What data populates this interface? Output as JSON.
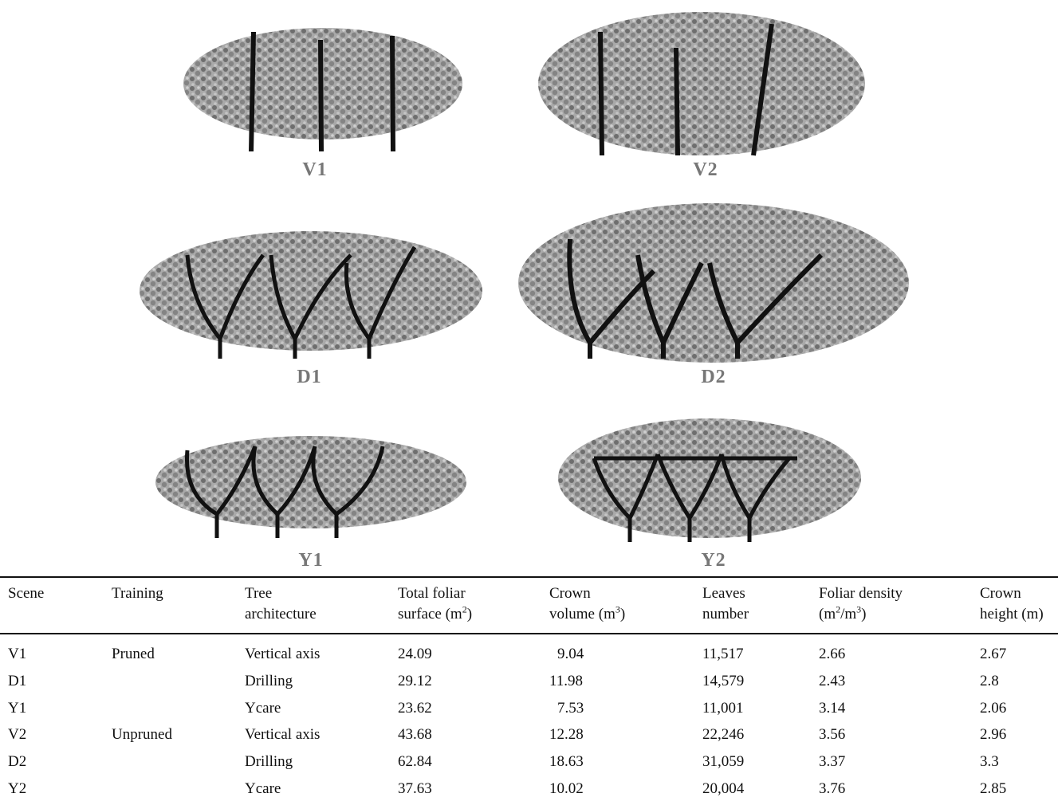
{
  "figure": {
    "panels": [
      "V1",
      "V2",
      "D1",
      "D2",
      "Y1",
      "Y2"
    ]
  },
  "table": {
    "header": [
      [
        [
          "Scene"
        ]
      ],
      [
        [
          "Training"
        ]
      ],
      [
        [
          "Tree"
        ],
        [
          "architecture"
        ]
      ],
      [
        [
          "Total foliar"
        ],
        [
          "surface (m",
          "2",
          ")"
        ]
      ],
      [
        [
          "Crown"
        ],
        [
          "volume (m",
          "3",
          ")"
        ]
      ],
      [
        [
          "Leaves"
        ],
        [
          "number"
        ]
      ],
      [
        [
          "Foliar density"
        ],
        [
          "(m",
          "2",
          "/m",
          "3",
          ")"
        ]
      ],
      [
        [
          "Crown"
        ],
        [
          "height (m)"
        ]
      ]
    ],
    "rows": [
      [
        "V1",
        "Pruned",
        "Vertical axis",
        "24.09",
        "9.04",
        "11,517",
        "2.66",
        "2.67"
      ],
      [
        "D1",
        null,
        "Drilling",
        "29.12",
        "11.98",
        "14,579",
        "2.43",
        "2.8"
      ],
      [
        "Y1",
        null,
        "Ycare",
        "23.62",
        "7.53",
        "11,001",
        "3.14",
        "2.06"
      ],
      [
        "V2",
        "Unpruned",
        "Vertical axis",
        "43.68",
        "12.28",
        "22,246",
        "3.56",
        "2.96"
      ],
      [
        "D2",
        null,
        "Drilling",
        "62.84",
        "18.63",
        "31,059",
        "3.37",
        "3.3"
      ],
      [
        "Y2",
        null,
        "Ycare",
        "37.63",
        "10.02",
        "20,004",
        "3.76",
        "2.85"
      ]
    ]
  }
}
